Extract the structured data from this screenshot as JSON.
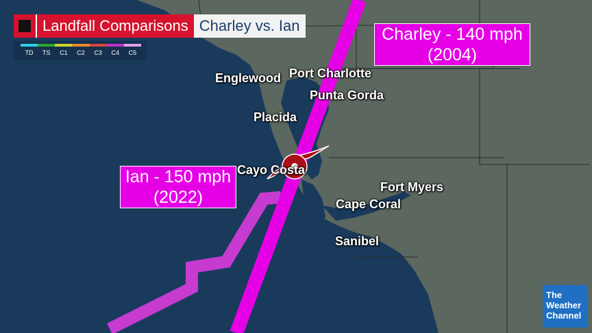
{
  "header": {
    "icon": "hurricane-center-icon",
    "title": "Landfall Comparisons",
    "subtitle": "Charley vs. Ian"
  },
  "legend": {
    "categories": [
      {
        "label": "TD",
        "color": "#2ad1e8"
      },
      {
        "label": "TS",
        "color": "#2ca82c"
      },
      {
        "label": "C1",
        "color": "#cfd42a"
      },
      {
        "label": "C2",
        "color": "#e88a2a"
      },
      {
        "label": "C3",
        "color": "#d9443a"
      },
      {
        "label": "C4",
        "color": "#c02fd0"
      },
      {
        "label": "C5",
        "color": "#e0a0e8"
      }
    ]
  },
  "storms": {
    "charley": {
      "line1": "Charley - 140 mph",
      "line2": "(2004)",
      "color": "#e600e6"
    },
    "ian": {
      "line1": "Ian - 150 mph",
      "line2": "(2022)",
      "color": "#e600e6"
    }
  },
  "cities": {
    "englewood": "Englewood",
    "port_charlotte": "Port Charlotte",
    "punta_gorda": "Punta Gorda",
    "placida": "Placida",
    "cayo_costa": "Cayo Costa",
    "fort_myers": "Fort Myers",
    "cape_coral": "Cape Coral",
    "sanibel": "Sanibel"
  },
  "logo": {
    "line1": "The",
    "line2": "Weather",
    "line3": "Channel",
    "color": "#1f6fc2"
  },
  "colors": {
    "ocean": "#1a3a5c",
    "land": "#5e6a63",
    "track": "#e600e6",
    "accent": "#d6122e"
  }
}
